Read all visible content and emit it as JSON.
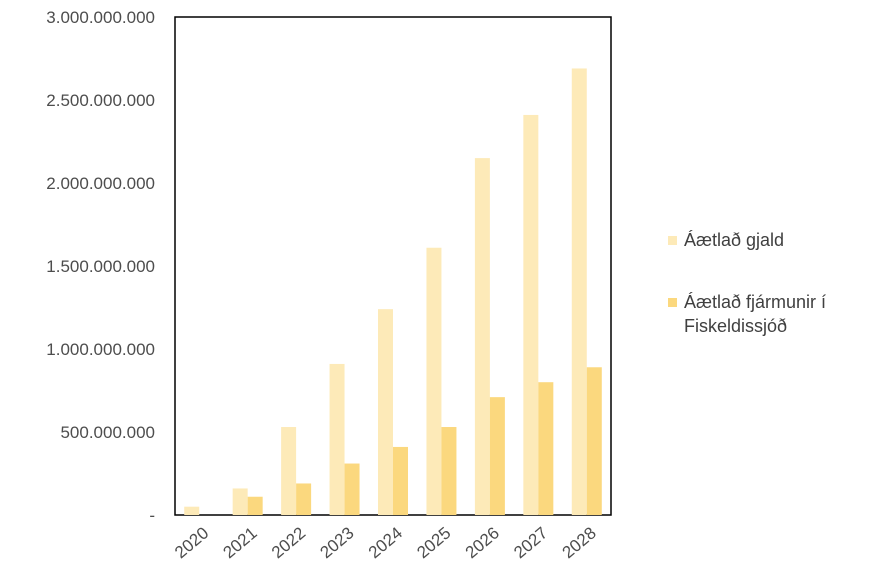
{
  "chart_data": {
    "type": "bar",
    "categories": [
      "2020",
      "2021",
      "2022",
      "2023",
      "2024",
      "2025",
      "2026",
      "2027",
      "2028"
    ],
    "series": [
      {
        "name": "Áætlað gjald",
        "color": "#FDEAB8",
        "values": [
          50000000,
          160000000,
          530000000,
          910000000,
          1240000000,
          1610000000,
          2150000000,
          2410000000,
          2690000000
        ]
      },
      {
        "name": "Áætlað fjármunir í Fiskeldissjóð",
        "color": "#FBD87E",
        "values": [
          0,
          110000000,
          190000000,
          310000000,
          410000000,
          530000000,
          710000000,
          800000000,
          890000000
        ]
      }
    ],
    "yticks": [
      "-",
      "500.000.000",
      "1.000.000.000",
      "1.500.000.000",
      "2.000.000.000",
      "2.500.000.000",
      "3.000.000.000"
    ],
    "ylim": [
      0,
      3000000000
    ],
    "grid": false,
    "legend_position": "right"
  },
  "legend": {
    "series1_label": "Áætlað gjald",
    "series2_label_line1": "Áætlað fjármunir í",
    "series2_label_line2": "Fiskeldissjóð"
  }
}
